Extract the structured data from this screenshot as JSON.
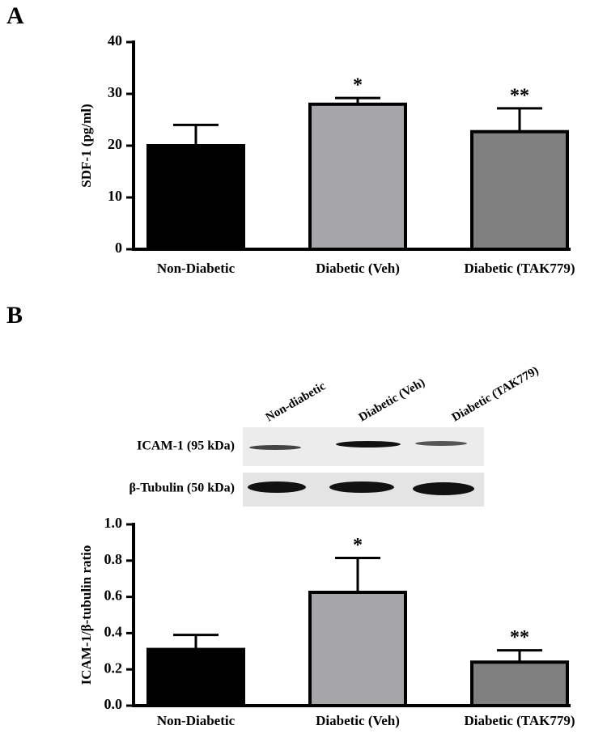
{
  "panel_labels": [
    "A",
    "B"
  ],
  "chart_data": [
    {
      "type": "bar",
      "ylabel": "SDF-1 (pg/ml)",
      "categories": [
        "Non-Diabetic",
        "Diabetic (Veh)",
        "Diabetic (TAK779)"
      ],
      "values": [
        20,
        28,
        22.7
      ],
      "errors": [
        4,
        1.2,
        4.5
      ],
      "annotations": [
        null,
        "*",
        "**"
      ],
      "colors": [
        "#000000",
        "#a6a6a8",
        "#808080"
      ],
      "ylim": [
        0,
        40
      ],
      "yticks": [
        0,
        10,
        20,
        30,
        40
      ]
    },
    {
      "type": "bar",
      "ylabel": "ICAM-1/β-tubulin ratio",
      "categories": [
        "Non-Diabetic",
        "Diabetic (Veh)",
        "Diabetic (TAK779)"
      ],
      "values": [
        0.31,
        0.625,
        0.24
      ],
      "errors": [
        0.08,
        0.19,
        0.065
      ],
      "annotations": [
        null,
        "*",
        "**"
      ],
      "colors": [
        "#000000",
        "#a6a6a8",
        "#808080"
      ],
      "ylim": [
        0,
        1
      ],
      "yticks": [
        {
          "value": 0,
          "label": "0.0"
        },
        {
          "value": 0.2,
          "label": "0.2"
        },
        {
          "value": 0.4,
          "label": "0.4"
        },
        {
          "value": 0.6,
          "label": "0.6"
        },
        {
          "value": 0.8,
          "label": "0.8"
        },
        {
          "value": 1,
          "label": "1.0"
        }
      ]
    }
  ],
  "blot": {
    "lanes": [
      "Non-diabetic",
      "Diabetic (Veh)",
      "Diabetic (TAK779)"
    ],
    "rows": [
      "ICAM-1 (95 kDa)",
      "β-Tubulin (50 kDa)"
    ]
  }
}
